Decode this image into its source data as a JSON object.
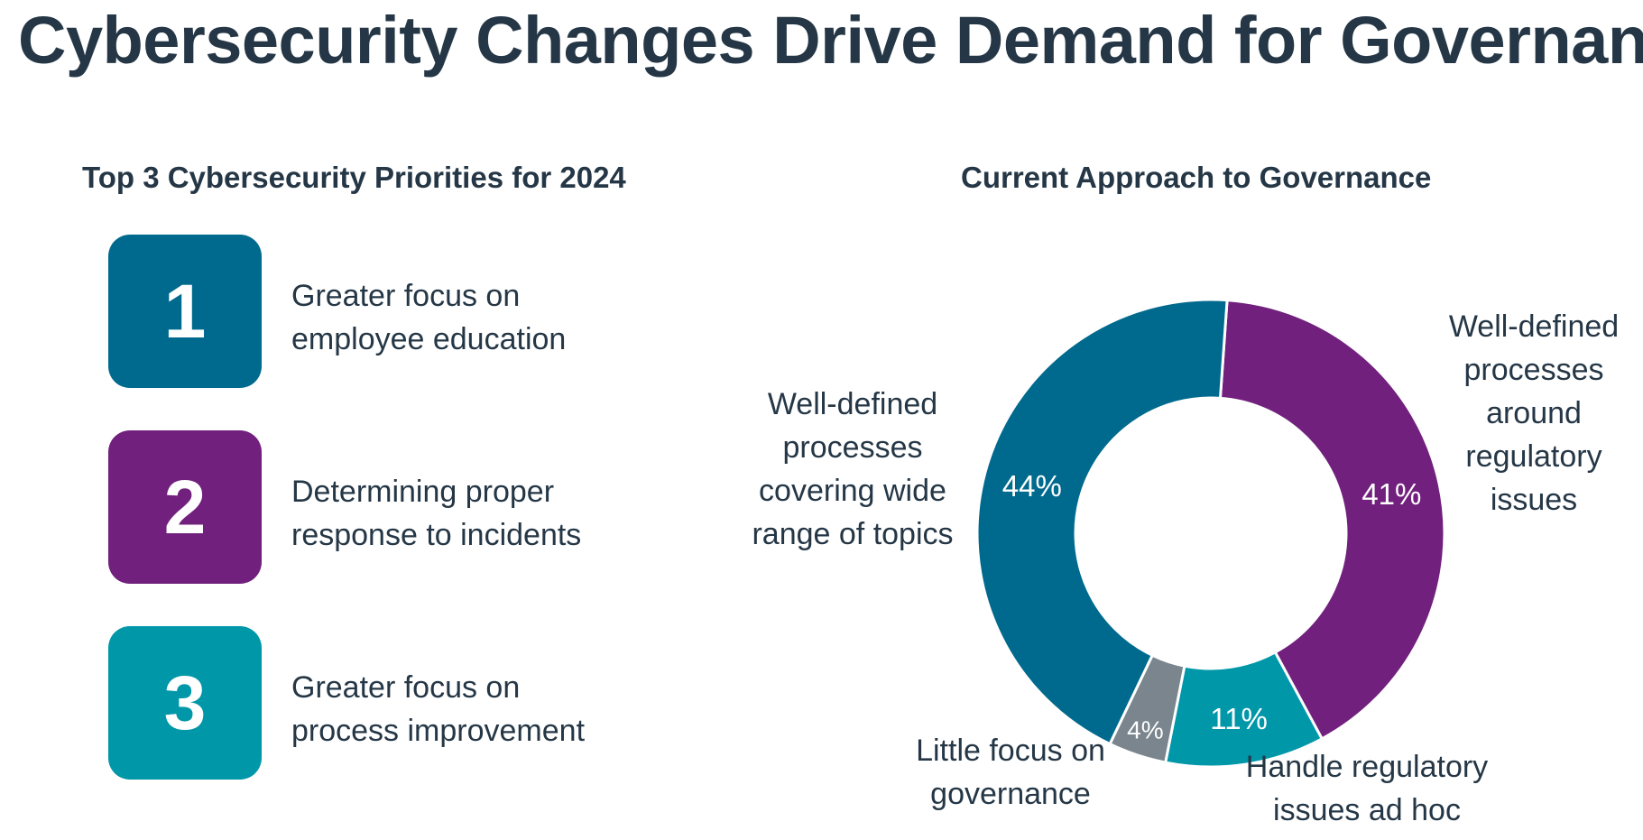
{
  "title": "Cybersecurity Changes Drive Demand for Governance",
  "priorities": {
    "heading": "Top 3 Cybersecurity Priorities for 2024",
    "items": [
      {
        "number": "1",
        "lines": [
          "Greater focus on",
          "employee education"
        ],
        "color": "#006A8E"
      },
      {
        "number": "2",
        "lines": [
          "Determining proper",
          "response to incidents"
        ],
        "color": "#71207D"
      },
      {
        "number": "3",
        "lines": [
          "Greater focus on",
          "process improvement"
        ],
        "color": "#0097A9"
      }
    ]
  },
  "chart_data": {
    "type": "donut",
    "title": "Current Approach to Governance",
    "categories": [
      "Well-defined processes around regulatory issues",
      "Handle regulatory issues ad hoc",
      "Little focus on governance",
      "Well-defined processes covering wide range of topics"
    ],
    "values": [
      41,
      11,
      4,
      44
    ],
    "value_labels": [
      "41%",
      "11%",
      "4%",
      "44%"
    ],
    "colors": [
      "#71207D",
      "#0097A9",
      "#7A858E",
      "#006A8E"
    ],
    "label_lines": [
      [
        "Well-defined",
        "processes",
        "around",
        "regulatory",
        "issues"
      ],
      [
        "Handle regulatory",
        "issues ad hoc"
      ],
      [
        "Little focus on",
        "governance"
      ],
      [
        "Well-defined",
        "processes",
        "covering wide",
        "range of topics"
      ]
    ]
  }
}
